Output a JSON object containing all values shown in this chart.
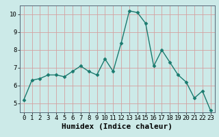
{
  "x": [
    0,
    1,
    2,
    3,
    4,
    5,
    6,
    7,
    8,
    9,
    10,
    11,
    12,
    13,
    14,
    15,
    16,
    17,
    18,
    19,
    20,
    21,
    22,
    23
  ],
  "y": [
    5.2,
    6.3,
    6.4,
    6.6,
    6.6,
    6.5,
    6.8,
    7.1,
    6.8,
    6.6,
    7.5,
    6.8,
    8.4,
    10.2,
    10.1,
    9.5,
    7.1,
    8.0,
    7.3,
    6.6,
    6.2,
    5.3,
    5.7,
    4.6
  ],
  "line_color": "#1a7a6e",
  "marker": "D",
  "marker_size": 2.5,
  "bg_color": "#cceae8",
  "grid_color": "#c0d8d5",
  "xlabel": "Humidex (Indice chaleur)",
  "ylim": [
    4.5,
    10.5
  ],
  "xlim": [
    -0.5,
    23.5
  ],
  "yticks": [
    5,
    6,
    7,
    8,
    9,
    10
  ],
  "xticks": [
    0,
    1,
    2,
    3,
    4,
    5,
    6,
    7,
    8,
    9,
    10,
    11,
    12,
    13,
    14,
    15,
    16,
    17,
    18,
    19,
    20,
    21,
    22,
    23
  ],
  "tick_fontsize": 6.5,
  "xlabel_fontsize": 8,
  "linewidth": 1.0
}
